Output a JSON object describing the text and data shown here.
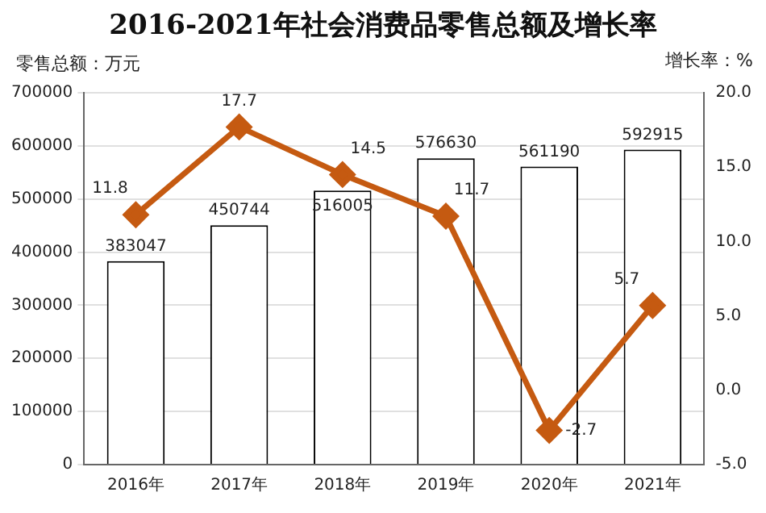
{
  "chart_data": {
    "type": "bar",
    "title": "2016-2021年社会消费品零售总额及增长率",
    "ylabel": "零售总额：万元",
    "y2label": "增长率：%",
    "categories": [
      "2016年",
      "2017年",
      "2018年",
      "2019年",
      "2020年",
      "2021年"
    ],
    "series": [
      {
        "color": "#ffffff",
        "values": [
          383047,
          450744,
          516005,
          576630,
          561190,
          592915
        ]
      },
      {
        "type": "line",
        "axis": "y2",
        "color": "#c55a11",
        "values": [
          11.8,
          17.7,
          14.5,
          11.7,
          -2.7,
          5.7
        ]
      }
    ],
    "ylim": [
      0,
      700000
    ],
    "yticks": [
      0,
      100000,
      200000,
      300000,
      400000,
      500000,
      600000,
      700000
    ],
    "y2lim": [
      -5,
      20
    ],
    "y2ticks": [
      {
        "value": -5,
        "label": "-5.0"
      },
      {
        "value": 0,
        "label": "0.0"
      },
      {
        "value": 5,
        "label": "5.0"
      },
      {
        "value": 10,
        "label": "10.0"
      },
      {
        "value": 15,
        "label": "15.0"
      },
      {
        "value": 20,
        "label": "20.0"
      }
    ],
    "grid": "y",
    "legend": false,
    "marker": "diamond",
    "line_style": "solid",
    "data_labels": true
  }
}
